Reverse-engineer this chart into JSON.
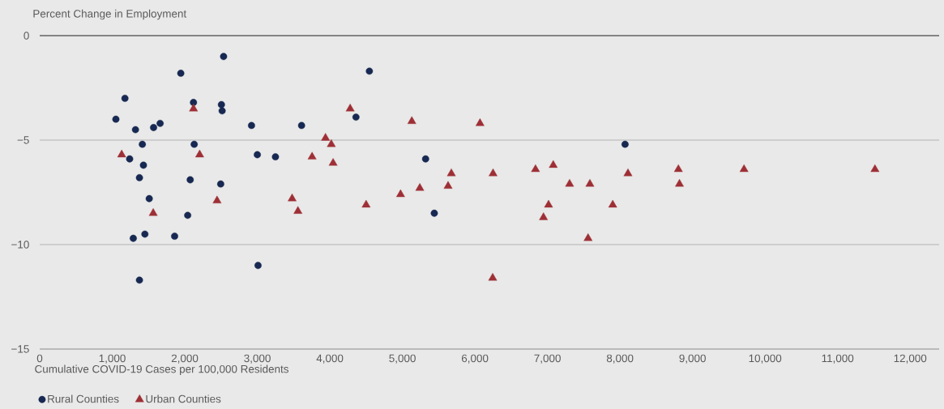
{
  "chart_data": {
    "type": "scatter",
    "ylabel": "Percent Change in Employment",
    "xlabel": "Cumulative COVID-19 Cases per 100,000 Residents",
    "xlim": [
      0,
      12400
    ],
    "ylim": [
      -15,
      0
    ],
    "xticks": [
      0,
      {
        "value": 1000,
        "label": "1,000"
      },
      {
        "value": 2000,
        "label": "2,000"
      },
      {
        "value": 3000,
        "label": "3,000"
      },
      {
        "value": 4000,
        "label": "4,000"
      },
      {
        "value": 5000,
        "label": "5,000"
      },
      {
        "value": 6000,
        "label": "6,000"
      },
      {
        "value": 7000,
        "label": "7,000"
      },
      {
        "value": 8000,
        "label": "8,000"
      },
      {
        "value": 9000,
        "label": "9,000"
      },
      {
        "value": 10000,
        "label": "10,000"
      },
      {
        "value": 11000,
        "label": "11,000"
      },
      {
        "value": 12000,
        "label": "12,000"
      }
    ],
    "yticks": [
      {
        "value": -15,
        "label": "−15"
      },
      {
        "value": -10,
        "label": "−10"
      },
      {
        "value": -5,
        "label": "−5"
      },
      0
    ],
    "grid": "y",
    "legend": "bottom left",
    "ref_lines": [
      {
        "axis": "y",
        "value": 0,
        "color": "#6b6b6b"
      }
    ],
    "series": [
      {
        "name": "Rural Counties",
        "color": "#172852",
        "marker": "circle",
        "x": [
          1050,
          1175,
          1240,
          1320,
          1290,
          1375,
          1375,
          1415,
          1430,
          1450,
          1510,
          1570,
          1660,
          1860,
          1945,
          2040,
          2075,
          2120,
          2130,
          2505,
          2515,
          2495,
          2535,
          2920,
          3000,
          3010,
          3250,
          3610,
          4360,
          4545,
          5320,
          5440,
          8070
        ],
        "values": [
          -4.0,
          -3.0,
          -5.9,
          -4.5,
          -9.7,
          -6.8,
          -11.7,
          -5.2,
          -6.2,
          -9.5,
          -7.8,
          -4.4,
          -4.2,
          -9.6,
          -1.8,
          -8.6,
          -6.9,
          -3.2,
          -5.2,
          -3.3,
          -3.6,
          -7.1,
          -1.0,
          -4.3,
          -5.7,
          -11.0,
          -5.8,
          -4.3,
          -3.9,
          -1.7,
          -5.9,
          -8.5,
          -5.2
        ]
      },
      {
        "name": "Urban Counties",
        "color": "#9e2f36",
        "marker": "triangle",
        "x": [
          1130,
          2120,
          2205,
          1565,
          2445,
          3480,
          3560,
          3755,
          3940,
          4020,
          4045,
          4280,
          4500,
          4975,
          5130,
          5240,
          5630,
          5675,
          6070,
          6250,
          6245,
          6835,
          7080,
          6945,
          7015,
          7305,
          7585,
          7560,
          7900,
          8110,
          8805,
          8820,
          9710,
          11515
        ],
        "values": [
          -5.7,
          -3.5,
          -5.7,
          -8.5,
          -7.9,
          -7.8,
          -8.4,
          -5.8,
          -4.9,
          -5.2,
          -6.1,
          -3.5,
          -8.1,
          -7.6,
          -4.1,
          -7.3,
          -7.2,
          -6.6,
          -4.2,
          -6.6,
          -11.6,
          -6.4,
          -6.2,
          -8.7,
          -8.1,
          -7.1,
          -7.1,
          -9.7,
          -8.1,
          -6.6,
          -6.4,
          -7.1,
          -6.4,
          -6.4
        ]
      }
    ]
  }
}
